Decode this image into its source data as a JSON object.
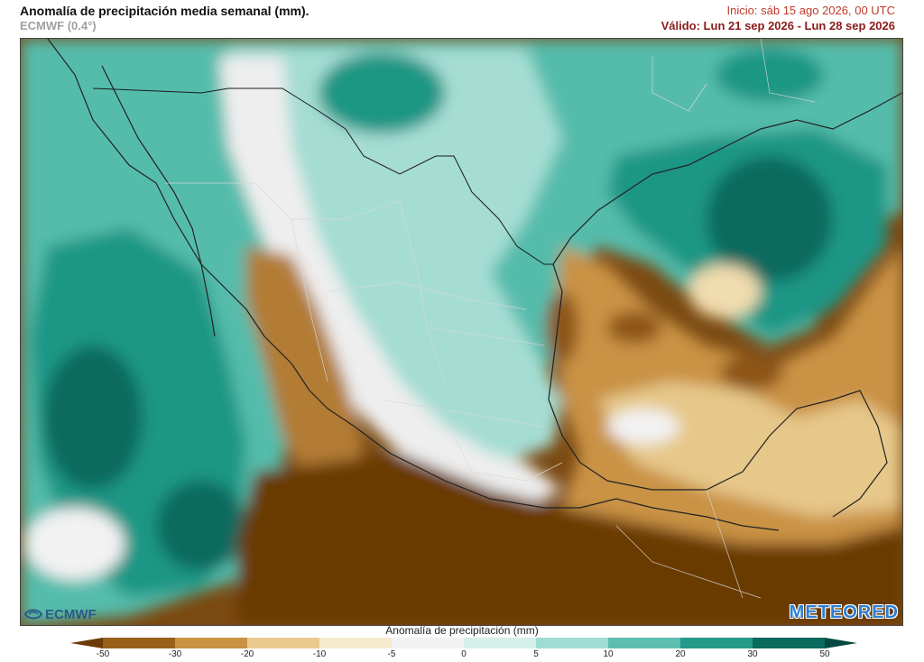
{
  "header": {
    "title": "Anomalía de precipitación media semanal (mm).",
    "model": "ECMWF (0.4°)",
    "init": "Inicio:  sáb 15 ago 2026, 00 UTC",
    "valid": "Válido: Lun 21 sep 2026 - Lun 28 sep 2026"
  },
  "logos": {
    "left": "ECMWF",
    "right": "METEORED"
  },
  "legend": {
    "title": "Anomalía de precipitación (mm)",
    "ticks": [
      "-50",
      "-30",
      "-20",
      "-10",
      "-5",
      "0",
      "5",
      "10",
      "20",
      "30",
      "50"
    ],
    "colors": [
      "#6b3a06",
      "#99601a",
      "#c99245",
      "#e9cb8f",
      "#f6ebcf",
      "#f2f2f2",
      "#d5efe9",
      "#9fdcd2",
      "#5ebfb1",
      "#239a8a",
      "#0b6a5e",
      "#04483f"
    ]
  },
  "map": {
    "region": "Mexico and surroundings",
    "palette": {
      "dry_extreme": "#6b3a06",
      "dry_strong": "#8d5515",
      "dry_moderate": "#b27b34",
      "dry_light": "#dcb06c",
      "dry_weak": "#f0dcae",
      "neutral": "#f2f2f2",
      "wet_weak": "#cfeee7",
      "wet_light": "#94d8cd",
      "wet_moderate": "#55bcac",
      "wet_strong": "#1f9685",
      "wet_extreme": "#0a6b5e",
      "border": "#222222",
      "internal_border": "#d8d8d8"
    }
  }
}
